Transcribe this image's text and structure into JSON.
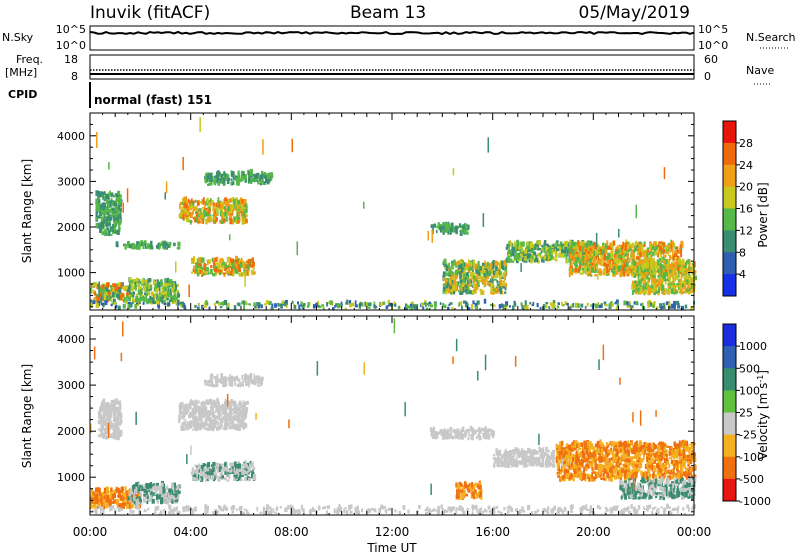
{
  "header": {
    "station": "Inuvik (fitACF)",
    "beam": "Beam 13",
    "date": "05/May/2019"
  },
  "status": {
    "nsky_label": "N.Sky",
    "nsky_ticks": [
      "10^5",
      "10^0"
    ],
    "nsearch_label": "N.Search",
    "nsearch_ticks": [
      "10^5",
      "10^0"
    ],
    "freq_label_line1": "Freq.",
    "freq_label_line2": "[MHz]",
    "freq_ticks": [
      "18",
      "8"
    ],
    "nave_label": "Nave",
    "nave_ticks": [
      "60",
      "0"
    ],
    "cpid_label": "CPID",
    "cpid_value": "normal (fast) 151"
  },
  "chart_data": [
    {
      "type": "heatmap",
      "name": "power",
      "ylabel": "Slant Range [km]",
      "yticks": [
        "1000",
        "2000",
        "3000",
        "4000"
      ],
      "ylim": [
        180,
        4500
      ],
      "colorbar_label": "Power [dB]",
      "colorbar_ticks": [
        "4",
        "8",
        "12",
        "16",
        "20",
        "24",
        "28"
      ],
      "colorbar_colors": [
        "#1530e6",
        "#2f5fb0",
        "#3a8c72",
        "#55b848",
        "#c8c81e",
        "#f0a018",
        "#f06a0a",
        "#e8160a"
      ],
      "patches": [
        {
          "t": [
            0.0,
            1.5
          ],
          "r": [
            300,
            700
          ],
          "levels": [
            10,
            14,
            18,
            24
          ]
        },
        {
          "t": [
            0.2,
            1.2
          ],
          "r": [
            1800,
            2700
          ],
          "levels": [
            8,
            12
          ]
        },
        {
          "t": [
            1.0,
            3.5
          ],
          "r": [
            1500,
            1600
          ],
          "levels": [
            8,
            12
          ]
        },
        {
          "t": [
            1.5,
            3.5
          ],
          "r": [
            300,
            800
          ],
          "levels": [
            8,
            12,
            16
          ]
        },
        {
          "t": [
            3.5,
            6.2
          ],
          "r": [
            2050,
            2550
          ],
          "levels": [
            12,
            16,
            20,
            24
          ]
        },
        {
          "t": [
            4.0,
            6.5
          ],
          "r": [
            900,
            1250
          ],
          "levels": [
            12,
            16,
            20,
            24
          ]
        },
        {
          "t": [
            4.5,
            7.2
          ],
          "r": [
            2900,
            3150
          ],
          "levels": [
            8,
            12
          ]
        },
        {
          "t": [
            13.5,
            15.0
          ],
          "r": [
            1800,
            2000
          ],
          "levels": [
            8,
            12
          ]
        },
        {
          "t": [
            14.0,
            16.5
          ],
          "r": [
            500,
            1200
          ],
          "levels": [
            8,
            12,
            16,
            20
          ]
        },
        {
          "t": [
            16.5,
            20.0
          ],
          "r": [
            1200,
            1600
          ],
          "levels": [
            8,
            12,
            16
          ]
        },
        {
          "t": [
            19.0,
            23.5
          ],
          "r": [
            900,
            1600
          ],
          "levels": [
            12,
            16,
            20,
            24
          ]
        },
        {
          "t": [
            21.5,
            24.0
          ],
          "r": [
            500,
            1200
          ],
          "levels": [
            12,
            16,
            20
          ]
        },
        {
          "t": [
            0.0,
            24.0
          ],
          "r": [
            180,
            320
          ],
          "levels": [
            4,
            8,
            12,
            16
          ]
        }
      ]
    },
    {
      "type": "heatmap",
      "name": "velocity",
      "ylabel": "Slant Range [km]",
      "yticks": [
        "1000",
        "2000",
        "3000",
        "4000"
      ],
      "ylim": [
        180,
        4500
      ],
      "colorbar_label": "Velocity [m s",
      "colorbar_label_sup": "-1",
      "colorbar_label_end": "]",
      "colorbar_ticks": [
        "1000",
        "500",
        "100",
        "25",
        "-25",
        "-100",
        "-500",
        "-1000"
      ],
      "colorbar_colors": [
        "#1a2ee0",
        "#3060b0",
        "#3a8c6e",
        "#60c040",
        "#c8c8c8",
        "#f5b020",
        "#f07010",
        "#e81510"
      ],
      "patches": [
        {
          "t": [
            0.0,
            2.0
          ],
          "r": [
            300,
            700
          ],
          "levels": [
            -100,
            -500
          ]
        },
        {
          "t": [
            0.3,
            1.2
          ],
          "r": [
            1800,
            2600
          ],
          "levels": [
            0
          ]
        },
        {
          "t": [
            1.5,
            3.5
          ],
          "r": [
            400,
            800
          ],
          "levels": [
            0,
            100
          ]
        },
        {
          "t": [
            3.5,
            6.2
          ],
          "r": [
            2000,
            2600
          ],
          "levels": [
            0
          ]
        },
        {
          "t": [
            4.0,
            6.5
          ],
          "r": [
            900,
            1250
          ],
          "levels": [
            100,
            0
          ]
        },
        {
          "t": [
            4.5,
            6.8
          ],
          "r": [
            2950,
            3150
          ],
          "levels": [
            0
          ]
        },
        {
          "t": [
            13.5,
            16.0
          ],
          "r": [
            1800,
            2000
          ],
          "levels": [
            0
          ]
        },
        {
          "t": [
            14.5,
            15.5
          ],
          "r": [
            500,
            800
          ],
          "levels": [
            -500,
            -100
          ]
        },
        {
          "t": [
            16.0,
            19.0
          ],
          "r": [
            1200,
            1550
          ],
          "levels": [
            0
          ]
        },
        {
          "t": [
            18.5,
            24.0
          ],
          "r": [
            900,
            1700
          ],
          "levels": [
            -500,
            -100
          ]
        },
        {
          "t": [
            21.0,
            24.0
          ],
          "r": [
            500,
            900
          ],
          "levels": [
            100,
            0
          ]
        },
        {
          "t": [
            0.0,
            24.0
          ],
          "r": [
            180,
            320
          ],
          "levels": [
            0
          ]
        }
      ]
    }
  ],
  "time_axis": {
    "tick_labels": [
      "00:00",
      "04:00",
      "08:00",
      "12:00",
      "16:00",
      "20:00",
      "00:00"
    ],
    "xlabel": "Time UT",
    "range_hours": [
      0,
      24
    ]
  }
}
